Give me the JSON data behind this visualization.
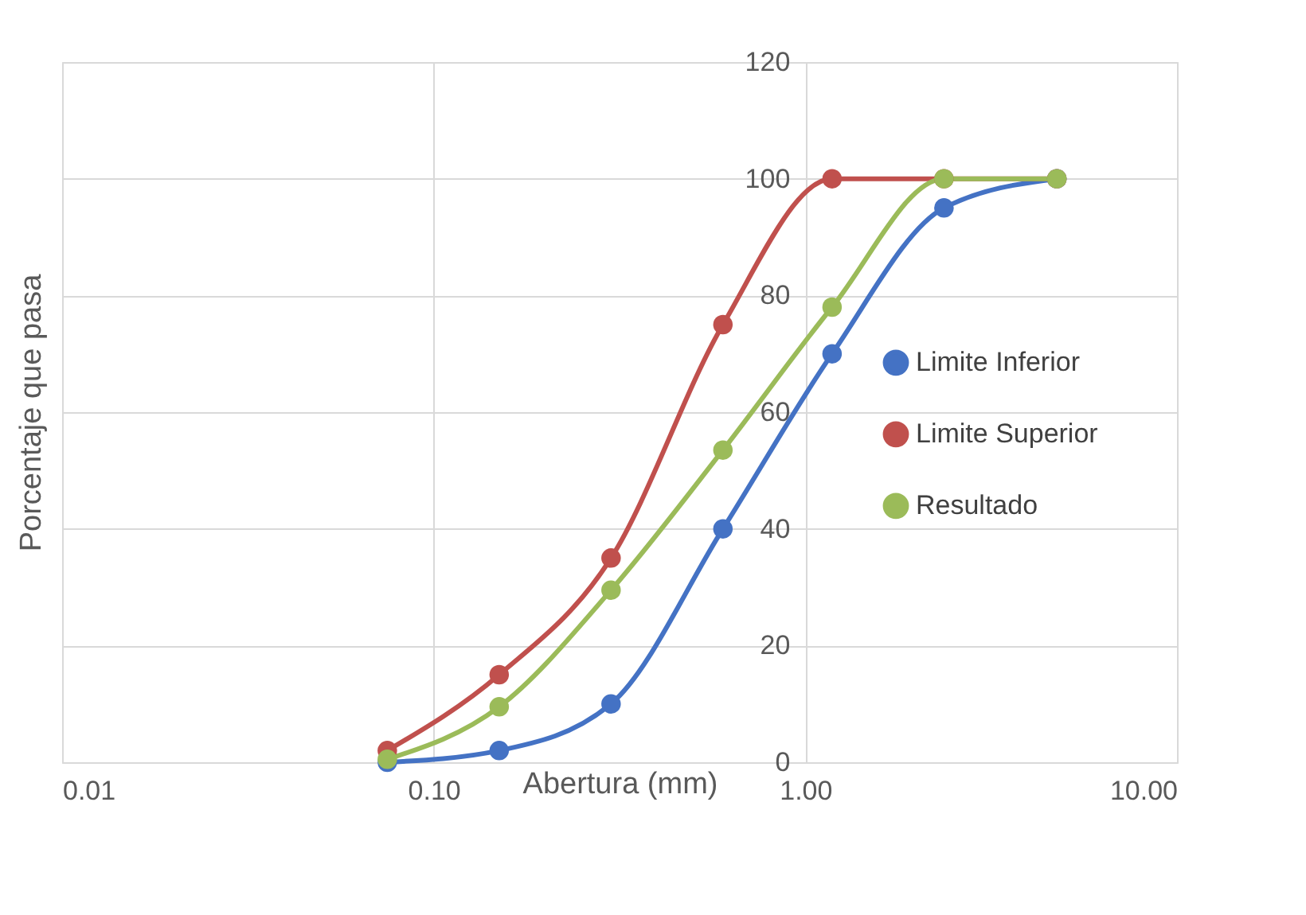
{
  "chart_data": {
    "type": "line",
    "xlabel": "Abertura (mm)",
    "ylabel": "Porcentaje que pasa",
    "x": [
      0.075,
      0.15,
      0.3,
      0.6,
      1.18,
      2.36,
      4.75
    ],
    "series": [
      {
        "name": "Limite Inferior",
        "color": "#4472c4",
        "values": [
          0,
          2,
          10,
          40,
          70,
          95,
          100
        ]
      },
      {
        "name": "Limite Superior",
        "color": "#c0504d",
        "values": [
          2,
          15,
          35,
          75,
          100,
          100,
          100
        ]
      },
      {
        "name": "Resultado",
        "color": "#9bbb59",
        "values": [
          0.5,
          9.5,
          29.5,
          53.5,
          78,
          100,
          100
        ]
      }
    ],
    "log": "x",
    "xlim": [
      0.01,
      10
    ],
    "xticks": [
      {
        "value": 0.01,
        "label": "0.01"
      },
      {
        "value": 0.1,
        "label": "0.10"
      },
      {
        "value": 1,
        "label": "1.00"
      },
      {
        "value": 10,
        "label": "10.00"
      }
    ],
    "ylim": [
      0,
      120
    ],
    "yticks": [
      0,
      20,
      40,
      60,
      80,
      100,
      120
    ],
    "grid": true,
    "legend": "right",
    "marker": "circle",
    "line_style": "solid"
  }
}
